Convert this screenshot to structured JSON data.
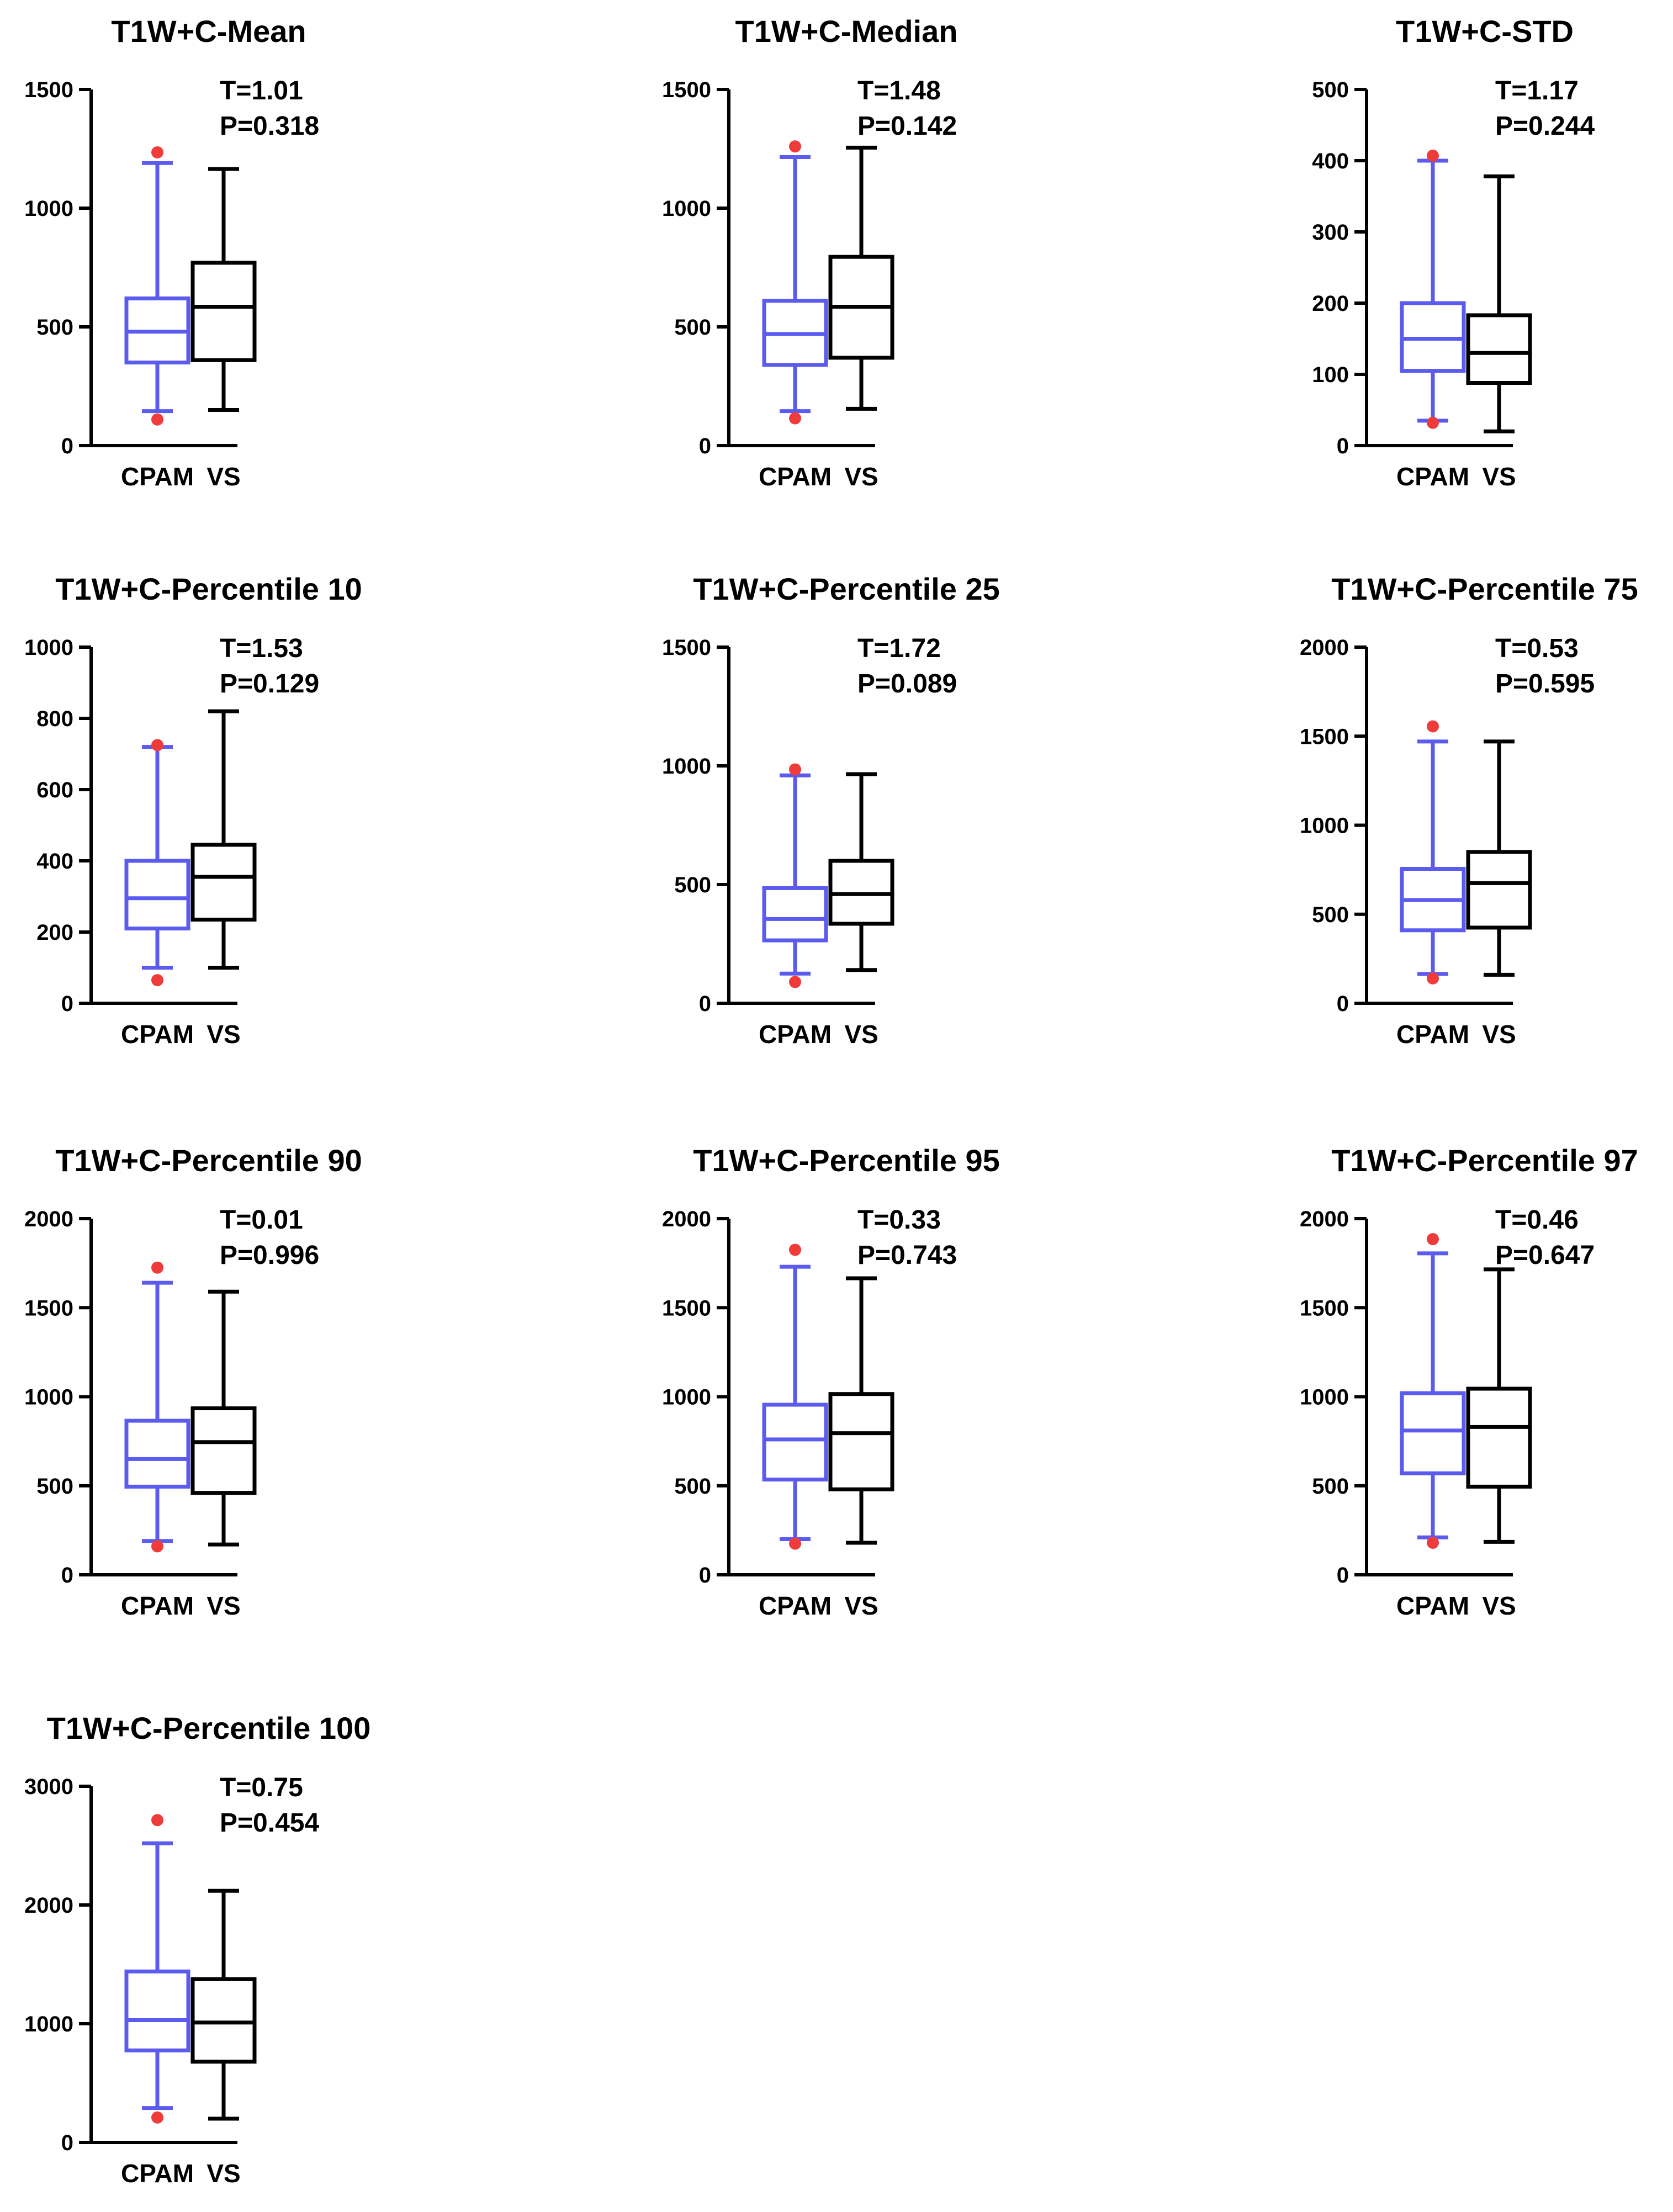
{
  "colors": {
    "cpam": "#5b5bf0",
    "vs": "#000000",
    "outlier": "#f03b3b",
    "axis": "#000000"
  },
  "chart_data": [
    {
      "type": "box",
      "title": "T1W+C-Mean",
      "t_label": "T=1.01",
      "p_label": "P=0.318",
      "categories": [
        "CPAM",
        "VS"
      ],
      "ylim": [
        0,
        1500
      ],
      "yticks": [
        0,
        500,
        1000,
        1500
      ],
      "boxes": [
        {
          "group": "CPAM",
          "whisker_low": 145,
          "q1": 350,
          "median": 480,
          "q3": 620,
          "whisker_high": 1190,
          "outliers": [
            110,
            1235
          ]
        },
        {
          "group": "VS",
          "whisker_low": 150,
          "q1": 360,
          "median": 585,
          "q3": 770,
          "whisker_high": 1165,
          "outliers": []
        }
      ]
    },
    {
      "type": "box",
      "title": "T1W+C-Median",
      "t_label": "T=1.48",
      "p_label": "P=0.142",
      "categories": [
        "CPAM",
        "VS"
      ],
      "ylim": [
        0,
        1500
      ],
      "yticks": [
        0,
        500,
        1000,
        1500
      ],
      "boxes": [
        {
          "group": "CPAM",
          "whisker_low": 145,
          "q1": 340,
          "median": 470,
          "q3": 610,
          "whisker_high": 1215,
          "outliers": [
            115,
            1260
          ]
        },
        {
          "group": "VS",
          "whisker_low": 155,
          "q1": 370,
          "median": 585,
          "q3": 795,
          "whisker_high": 1255,
          "outliers": []
        }
      ]
    },
    {
      "type": "box",
      "title": "T1W+C-STD",
      "t_label": "T=1.17",
      "p_label": "P=0.244",
      "categories": [
        "CPAM",
        "VS"
      ],
      "ylim": [
        0,
        500
      ],
      "yticks": [
        0,
        100,
        200,
        300,
        400,
        500
      ],
      "boxes": [
        {
          "group": "CPAM",
          "whisker_low": 35,
          "q1": 105,
          "median": 150,
          "q3": 200,
          "whisker_high": 400,
          "outliers": [
            32,
            407
          ]
        },
        {
          "group": "VS",
          "whisker_low": 20,
          "q1": 88,
          "median": 130,
          "q3": 183,
          "whisker_high": 378,
          "outliers": []
        }
      ]
    },
    {
      "type": "box",
      "title": "T1W+C-Percentile 10",
      "t_label": "T=1.53",
      "p_label": "P=0.129",
      "categories": [
        "CPAM",
        "VS"
      ],
      "ylim": [
        0,
        1000
      ],
      "yticks": [
        0,
        200,
        400,
        600,
        800,
        1000
      ],
      "boxes": [
        {
          "group": "CPAM",
          "whisker_low": 100,
          "q1": 210,
          "median": 295,
          "q3": 400,
          "whisker_high": 720,
          "outliers": [
            65,
            725
          ]
        },
        {
          "group": "VS",
          "whisker_low": 100,
          "q1": 235,
          "median": 355,
          "q3": 445,
          "whisker_high": 820,
          "outliers": []
        }
      ]
    },
    {
      "type": "box",
      "title": "T1W+C-Percentile 25",
      "t_label": "T=1.72",
      "p_label": "P=0.089",
      "categories": [
        "CPAM",
        "VS"
      ],
      "ylim": [
        0,
        1500
      ],
      "yticks": [
        0,
        500,
        1000,
        1500
      ],
      "boxes": [
        {
          "group": "CPAM",
          "whisker_low": 125,
          "q1": 265,
          "median": 355,
          "q3": 485,
          "whisker_high": 960,
          "outliers": [
            90,
            985
          ]
        },
        {
          "group": "VS",
          "whisker_low": 140,
          "q1": 335,
          "median": 460,
          "q3": 600,
          "whisker_high": 965,
          "outliers": []
        }
      ]
    },
    {
      "type": "box",
      "title": "T1W+C-Percentile 75",
      "t_label": "T=0.53",
      "p_label": "P=0.595",
      "categories": [
        "CPAM",
        "VS"
      ],
      "ylim": [
        0,
        2000
      ],
      "yticks": [
        0,
        500,
        1000,
        1500,
        2000
      ],
      "boxes": [
        {
          "group": "CPAM",
          "whisker_low": 165,
          "q1": 410,
          "median": 580,
          "q3": 755,
          "whisker_high": 1470,
          "outliers": [
            140,
            1555
          ]
        },
        {
          "group": "VS",
          "whisker_low": 160,
          "q1": 425,
          "median": 675,
          "q3": 850,
          "whisker_high": 1470,
          "outliers": []
        }
      ]
    },
    {
      "type": "box",
      "title": "T1W+C-Percentile 90",
      "t_label": "T=0.01",
      "p_label": "P=0.996",
      "categories": [
        "CPAM",
        "VS"
      ],
      "ylim": [
        0,
        2000
      ],
      "yticks": [
        0,
        500,
        1000,
        1500,
        2000
      ],
      "boxes": [
        {
          "group": "CPAM",
          "whisker_low": 190,
          "q1": 495,
          "median": 650,
          "q3": 865,
          "whisker_high": 1640,
          "outliers": [
            160,
            1725
          ]
        },
        {
          "group": "VS",
          "whisker_low": 170,
          "q1": 460,
          "median": 745,
          "q3": 935,
          "whisker_high": 1590,
          "outliers": []
        }
      ]
    },
    {
      "type": "box",
      "title": "T1W+C-Percentile 95",
      "t_label": "T=0.33",
      "p_label": "P=0.743",
      "categories": [
        "CPAM",
        "VS"
      ],
      "ylim": [
        0,
        2000
      ],
      "yticks": [
        0,
        500,
        1000,
        1500,
        2000
      ],
      "boxes": [
        {
          "group": "CPAM",
          "whisker_low": 200,
          "q1": 535,
          "median": 760,
          "q3": 955,
          "whisker_high": 1730,
          "outliers": [
            175,
            1825
          ]
        },
        {
          "group": "VS",
          "whisker_low": 180,
          "q1": 480,
          "median": 795,
          "q3": 1015,
          "whisker_high": 1665,
          "outliers": []
        }
      ]
    },
    {
      "type": "box",
      "title": "T1W+C-Percentile 97",
      "t_label": "T=0.46",
      "p_label": "P=0.647",
      "categories": [
        "CPAM",
        "VS"
      ],
      "ylim": [
        0,
        2000
      ],
      "yticks": [
        0,
        500,
        1000,
        1500,
        2000
      ],
      "boxes": [
        {
          "group": "CPAM",
          "whisker_low": 210,
          "q1": 570,
          "median": 810,
          "q3": 1020,
          "whisker_high": 1805,
          "outliers": [
            180,
            1885
          ]
        },
        {
          "group": "VS",
          "whisker_low": 185,
          "q1": 495,
          "median": 830,
          "q3": 1045,
          "whisker_high": 1715,
          "outliers": []
        }
      ]
    },
    {
      "type": "box",
      "title": "T1W+C-Percentile 100",
      "t_label": "T=0.75",
      "p_label": "P=0.454",
      "categories": [
        "CPAM",
        "VS"
      ],
      "ylim": [
        0,
        3000
      ],
      "yticks": [
        0,
        1000,
        2000,
        3000
      ],
      "boxes": [
        {
          "group": "CPAM",
          "whisker_low": 290,
          "q1": 775,
          "median": 1030,
          "q3": 1440,
          "whisker_high": 2520,
          "outliers": [
            210,
            2715
          ]
        },
        {
          "group": "VS",
          "whisker_low": 200,
          "q1": 680,
          "median": 1010,
          "q3": 1375,
          "whisker_high": 2120,
          "outliers": []
        }
      ]
    }
  ]
}
